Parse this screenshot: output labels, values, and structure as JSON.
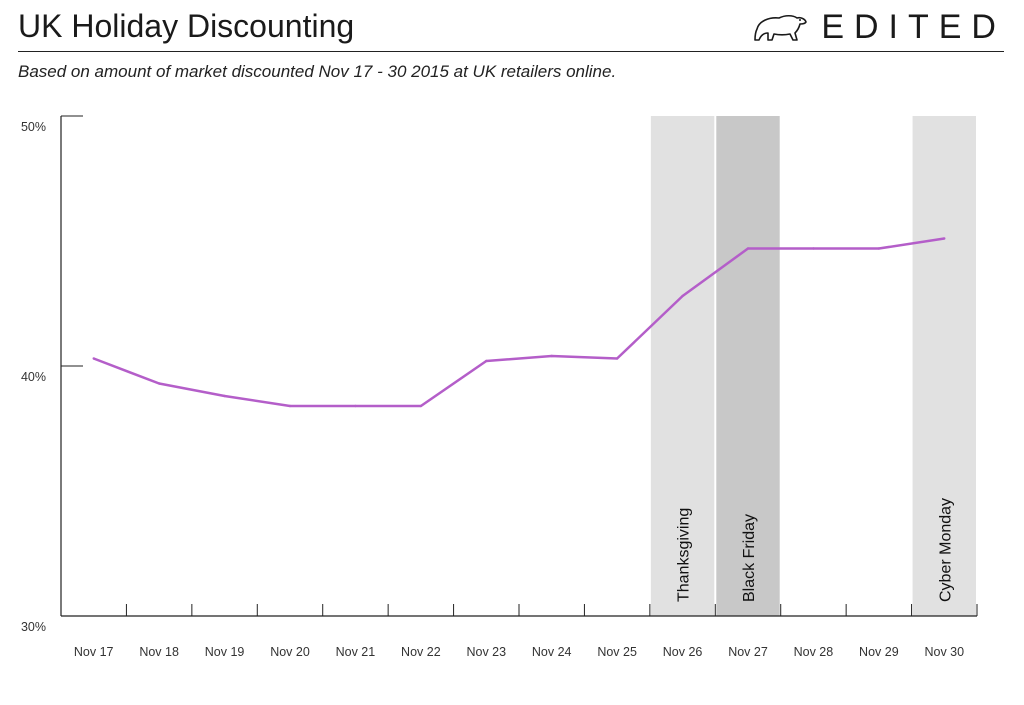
{
  "header": {
    "title": "UK Holiday Discounting",
    "subtitle": "Based on amount of market discounted Nov 17 - 30 2015 at UK retailers online.",
    "brand": "EDITED"
  },
  "chart_data": {
    "type": "line",
    "title": "UK Holiday Discounting",
    "subtitle": "Based on amount of market discounted Nov 17 - 30 2015 at UK retailers online.",
    "xlabel": "",
    "ylabel": "",
    "categories": [
      "Nov 17",
      "Nov 18",
      "Nov 19",
      "Nov 20",
      "Nov 21",
      "Nov 22",
      "Nov 23",
      "Nov 24",
      "Nov 25",
      "Nov 26",
      "Nov 27",
      "Nov 28",
      "Nov 29",
      "Nov 30"
    ],
    "values": [
      40.3,
      39.3,
      38.8,
      38.4,
      38.4,
      38.4,
      40.2,
      40.4,
      40.3,
      42.8,
      44.7,
      44.7,
      44.7,
      45.1
    ],
    "ylim": [
      30,
      50
    ],
    "yticks": [
      30,
      40,
      50
    ],
    "ytick_labels": [
      "30%",
      "40%",
      "50%"
    ],
    "grid": false,
    "line_color": "#b45ec9",
    "highlights": [
      {
        "label": "Thanksgiving",
        "category": "Nov 26",
        "color": "#e1e1e1"
      },
      {
        "label": "Black Friday",
        "category": "Nov 27",
        "color": "#c8c8c8"
      },
      {
        "label": "Cyber Monday",
        "category": "Nov 30",
        "color": "#e1e1e1"
      }
    ]
  }
}
